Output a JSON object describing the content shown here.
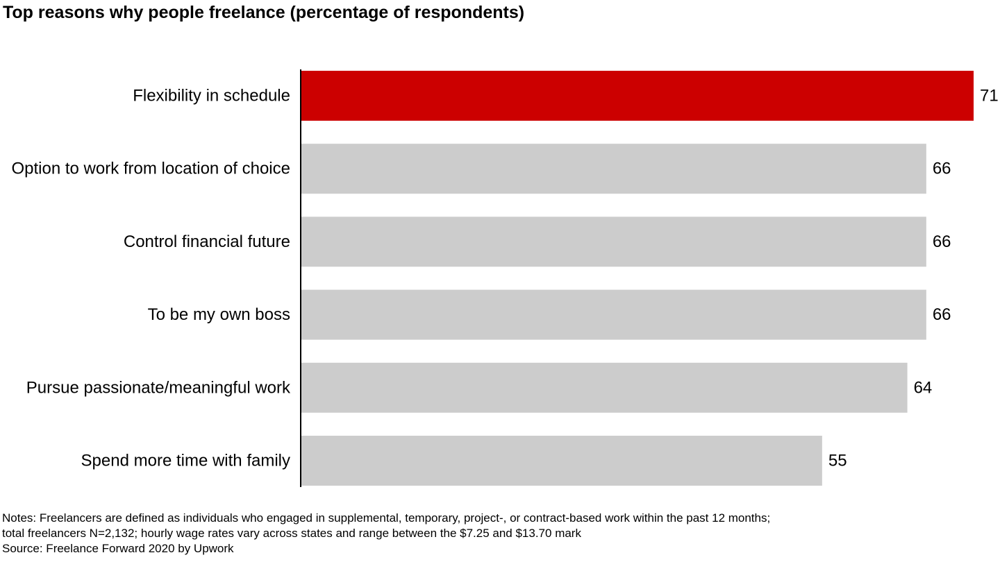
{
  "chart_data": {
    "type": "bar",
    "orientation": "horizontal",
    "title": "Top reasons why people freelance (percentage of respondents)",
    "categories": [
      "Flexibility in schedule",
      "Option to work from location of choice",
      "Control financial future",
      "To be my own boss",
      "Pursue passionate/meaningful work",
      "Spend more time with family"
    ],
    "values": [
      71,
      66,
      66,
      66,
      64,
      55
    ],
    "colors": [
      "#cc0000",
      "#cccccc",
      "#cccccc",
      "#cccccc",
      "#cccccc",
      "#cccccc"
    ],
    "xlim": [
      0,
      71
    ],
    "grid": false,
    "legend": "none",
    "xlabel": "",
    "ylabel": ""
  },
  "footer": {
    "notes_line1": "Notes: Freelancers are defined as individuals who engaged in supplemental, temporary, project-, or contract-based work within the past 12 months;",
    "notes_line2": "total freelancers N=2,132; hourly wage rates vary across states and range between the $7.25 and $13.70 mark",
    "source": "Source: Freelance Forward 2020 by Upwork"
  }
}
